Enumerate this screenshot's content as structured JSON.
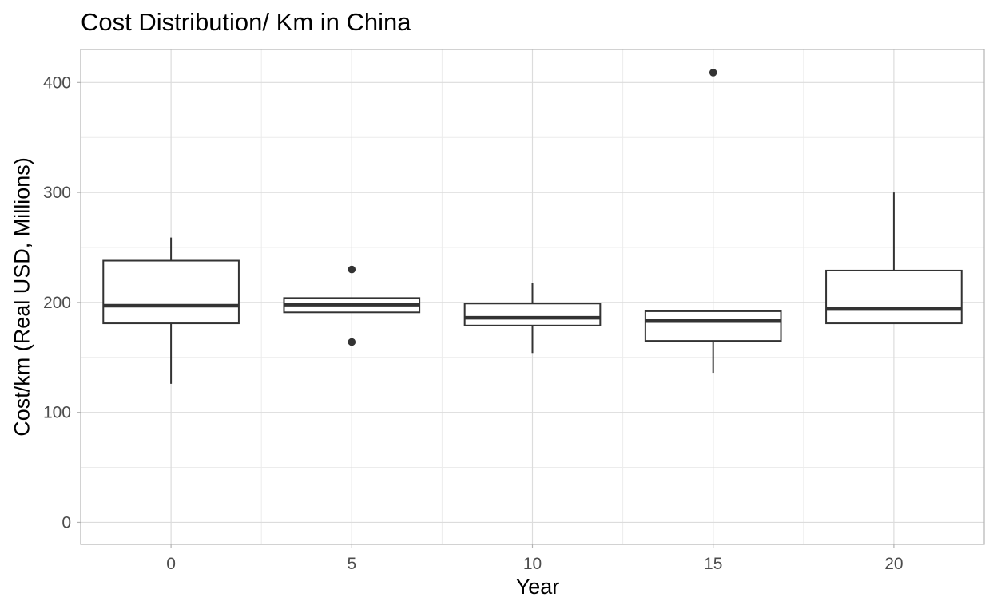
{
  "chart_data": {
    "type": "boxplot",
    "title": "Cost Distribution/ Km in China",
    "xlabel": "Year",
    "ylabel": "Cost/km (Real USD, Millions)",
    "xlim": [
      -2.5,
      22.5
    ],
    "ylim": [
      -20,
      430
    ],
    "x_ticks": [
      0,
      5,
      10,
      15,
      20
    ],
    "y_ticks": [
      0,
      100,
      200,
      300,
      400
    ],
    "grid": true,
    "legend": "none",
    "colors": {
      "box_stroke": "#333333",
      "median": "#333333",
      "grid_major": "#dcdcdc",
      "grid_minor": "#ececec",
      "panel_border": "#b3b3b3",
      "tick_label": "#4d4d4d"
    },
    "boxes": [
      {
        "x": 0,
        "whisker_low": 126,
        "q1": 181,
        "median": 197,
        "q3": 238,
        "whisker_high": 259,
        "outliers": []
      },
      {
        "x": 5,
        "whisker_low": 191,
        "q1": 191,
        "median": 198,
        "q3": 204,
        "whisker_high": 204,
        "outliers": [
          164,
          230
        ]
      },
      {
        "x": 10,
        "whisker_low": 154,
        "q1": 179,
        "median": 186,
        "q3": 199,
        "whisker_high": 218,
        "outliers": []
      },
      {
        "x": 15,
        "whisker_low": 136,
        "q1": 165,
        "median": 183,
        "q3": 192,
        "whisker_high": 192,
        "outliers": [
          409
        ]
      },
      {
        "x": 20,
        "whisker_low": 181,
        "q1": 181,
        "median": 194,
        "q3": 229,
        "whisker_high": 300,
        "outliers": []
      }
    ]
  }
}
